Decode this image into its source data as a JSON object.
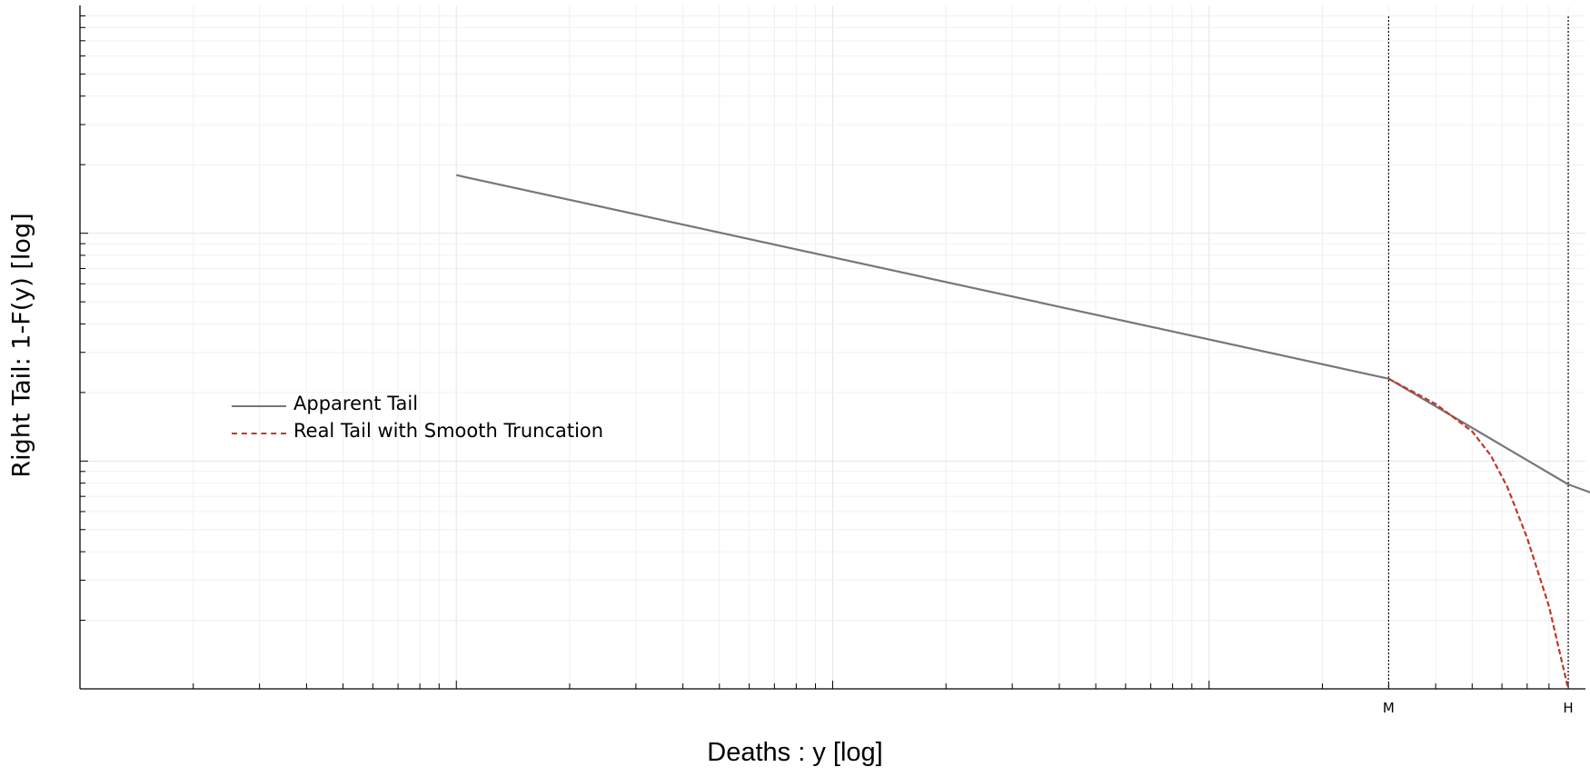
{
  "chart_data": {
    "type": "line",
    "title": "",
    "xlabel": "Deaths : y [log]",
    "ylabel": "Right Tail: 1-F(y) [log]",
    "x_scale": "log",
    "y_scale": "log",
    "xlim": [
      1,
      10000
    ],
    "ylim": [
      0.001,
      1
    ],
    "x_ticks": [
      {
        "x": 3000,
        "label": "M"
      },
      {
        "x": 9000,
        "label": "H"
      }
    ],
    "vertical_markers": [
      {
        "x": 3000,
        "label": "M",
        "style": "dotted",
        "color": "#000000"
      },
      {
        "x": 9000,
        "label": "H",
        "style": "dotted",
        "color": "#000000"
      }
    ],
    "series": [
      {
        "name": "Apparent Tail",
        "style": "solid",
        "color": "#777777",
        "x": [
          10,
          3000,
          9000,
          18000
        ],
        "y": [
          0.18,
          0.023,
          0.0079,
          0.0052
        ]
      },
      {
        "name": "Real Tail with Smooth Truncation",
        "style": "dashed",
        "color": "#c0392b",
        "x": [
          3000,
          4000,
          5000,
          5600,
          6200,
          7000,
          8000,
          9000
        ],
        "y": [
          0.023,
          0.0178,
          0.0135,
          0.0106,
          0.0077,
          0.0046,
          0.0023,
          0.001
        ]
      }
    ],
    "grid": true,
    "legend": "center-left"
  }
}
